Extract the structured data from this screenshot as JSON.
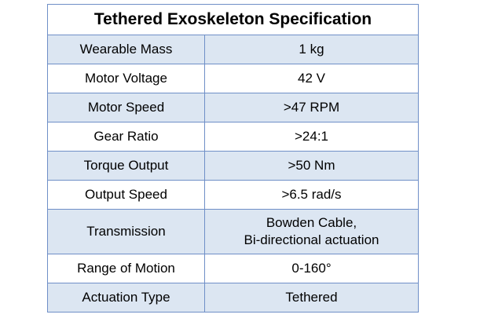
{
  "table": {
    "title": "Tethered Exoskeleton Specification",
    "rows": [
      {
        "label": "Wearable Mass",
        "value": "1 kg"
      },
      {
        "label": "Motor Voltage",
        "value": "42 V"
      },
      {
        "label": "Motor Speed",
        "value": ">47 RPM"
      },
      {
        "label": "Gear Ratio",
        "value": ">24:1"
      },
      {
        "label": "Torque Output",
        "value": ">50 Nm"
      },
      {
        "label": "Output Speed",
        "value": ">6.5 rad/s"
      },
      {
        "label": "Transmission",
        "value": "Bowden Cable,",
        "value_line2": "Bi-directional actuation"
      },
      {
        "label": "Range of Motion",
        "value": "0-160°"
      },
      {
        "label": "Actuation Type",
        "value": "Tethered"
      }
    ]
  },
  "colors": {
    "border": "#6f8fc7",
    "shaded_row": "#dce6f2",
    "plain_row": "#ffffff"
  }
}
